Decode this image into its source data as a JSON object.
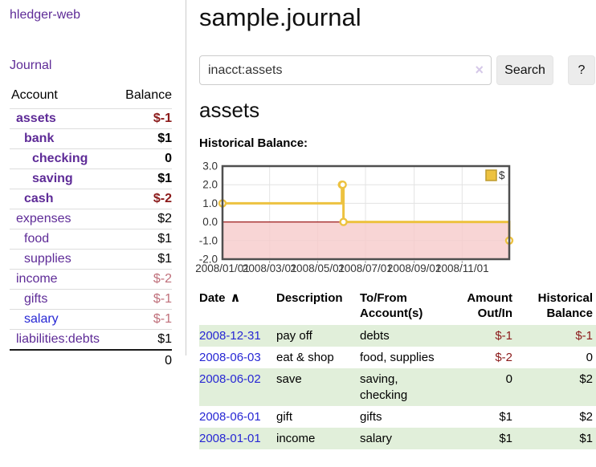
{
  "app": {
    "title": "hledger-web"
  },
  "sidebar": {
    "nav_journal": "Journal",
    "accounts": {
      "header_account": "Account",
      "header_balance": "Balance",
      "rows": [
        {
          "name": "assets",
          "indent": 1,
          "balance": "$-1",
          "bold": true,
          "negative": true,
          "unvisited": false
        },
        {
          "name": "bank",
          "indent": 2,
          "balance": "$1",
          "bold": true,
          "negative": false,
          "unvisited": false
        },
        {
          "name": "checking",
          "indent": 3,
          "balance": "0",
          "bold": true,
          "negative": false,
          "unvisited": false
        },
        {
          "name": "saving",
          "indent": 3,
          "balance": "$1",
          "bold": true,
          "negative": false,
          "unvisited": false
        },
        {
          "name": "cash",
          "indent": 2,
          "balance": "$-2",
          "bold": true,
          "negative": true,
          "unvisited": false
        },
        {
          "name": "expenses",
          "indent": 1,
          "balance": "$2",
          "bold": false,
          "negative": false,
          "unvisited": false
        },
        {
          "name": "food",
          "indent": 2,
          "balance": "$1",
          "bold": false,
          "negative": false,
          "unvisited": false
        },
        {
          "name": "supplies",
          "indent": 2,
          "balance": "$1",
          "bold": false,
          "negative": false,
          "unvisited": false
        },
        {
          "name": "income",
          "indent": 1,
          "balance": "$-2",
          "bold": false,
          "negative": true,
          "unvisited": false
        },
        {
          "name": "gifts",
          "indent": 2,
          "balance": "$-1",
          "bold": false,
          "negative": true,
          "unvisited": false
        },
        {
          "name": "salary",
          "indent": 2,
          "balance": "$-1",
          "bold": false,
          "negative": true,
          "unvisited": true
        },
        {
          "name": "liabilities:debts",
          "indent": 1,
          "balance": "$1",
          "bold": false,
          "negative": false,
          "unvisited": false
        }
      ],
      "total": "0"
    }
  },
  "main": {
    "title": "sample.journal",
    "search": {
      "value": "inacct:assets",
      "clear_icon": "×",
      "search_button": "Search",
      "help_button": "?"
    },
    "account_heading": "assets",
    "chart_title": "Historical Balance:",
    "register": {
      "headers": [
        {
          "line1": "Date",
          "sort_icon": "∧"
        },
        {
          "line1": "Description"
        },
        {
          "line1": "To/From",
          "line2": "Account(s)"
        },
        {
          "line1": "Amount",
          "line2": "Out/In"
        },
        {
          "line1": "Historical",
          "line2": "Balance"
        }
      ],
      "rows": [
        {
          "date": "2008-12-31",
          "description": "pay off",
          "accounts": "debts",
          "amount": "$-1",
          "amount_negative": true,
          "balance": "$-1",
          "balance_negative": true
        },
        {
          "date": "2008-06-03",
          "description": "eat & shop",
          "accounts": "food, supplies",
          "amount": "$-2",
          "amount_negative": true,
          "balance": "0",
          "balance_negative": false
        },
        {
          "date": "2008-06-02",
          "description": "save",
          "accounts": "saving, checking",
          "amount": "0",
          "amount_negative": false,
          "balance": "$2",
          "balance_negative": false
        },
        {
          "date": "2008-06-01",
          "description": "gift",
          "accounts": "gifts",
          "amount": "$1",
          "amount_negative": false,
          "balance": "$2",
          "balance_negative": false
        },
        {
          "date": "2008-01-01",
          "description": "income",
          "accounts": "salary",
          "amount": "$1",
          "amount_negative": false,
          "balance": "$1",
          "balance_negative": false
        }
      ]
    }
  },
  "chart_data": {
    "type": "line",
    "step": true,
    "title": "Historical Balance:",
    "legend": [
      {
        "label": "$",
        "color": "#edc240"
      }
    ],
    "legend_position": "top-right",
    "grid": true,
    "series": [
      {
        "name": "$",
        "color": "#edc240",
        "points": [
          {
            "date": "2008-01-01",
            "day": 0,
            "value": 1
          },
          {
            "date": "2008-06-01",
            "day": 152,
            "value": 2
          },
          {
            "date": "2008-06-02",
            "day": 153,
            "value": 2
          },
          {
            "date": "2008-06-03",
            "day": 154,
            "value": 0
          },
          {
            "date": "2008-12-31",
            "day": 365,
            "value": -1
          }
        ]
      }
    ],
    "x_ticks": [
      {
        "label": "2008/01/01",
        "day": 0
      },
      {
        "label": "2008/03/01",
        "day": 60
      },
      {
        "label": "2008/05/01",
        "day": 121
      },
      {
        "label": "2008/07/01",
        "day": 182
      },
      {
        "label": "2008/09/01",
        "day": 244
      },
      {
        "label": "2008/11/01",
        "day": 305
      }
    ],
    "x_range_days": [
      0,
      365
    ],
    "y_ticks": [
      {
        "label": "3.0",
        "value": 3
      },
      {
        "label": "2.0",
        "value": 2
      },
      {
        "label": "1.0",
        "value": 1
      },
      {
        "label": "0.0",
        "value": 0
      },
      {
        "label": "-1.0",
        "value": -1
      },
      {
        "label": "-2.0",
        "value": -2
      }
    ],
    "ylim": [
      -2,
      3
    ],
    "negative_region_color": "#f6caca",
    "zero_line_color": "#9b1c1c"
  },
  "colors": {
    "link_purple": "#5e2b97",
    "link_blue": "#2727d4",
    "negative_bold": "#8b1a1a",
    "negative_soft": "#bf6f7a",
    "row_green": "#e1efda",
    "chart_gold": "#edc240",
    "button_gray": "#ececec"
  }
}
